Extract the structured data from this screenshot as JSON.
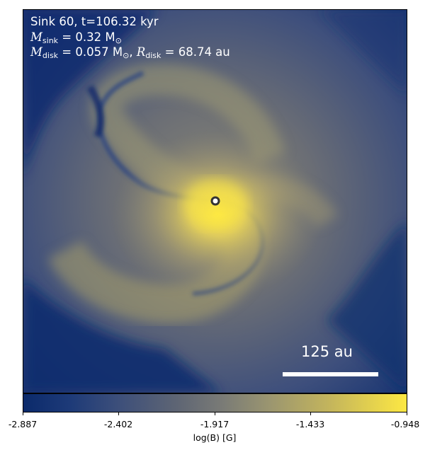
{
  "annotations": {
    "line1": "Sink 60, t=106.32 kyr",
    "msink_symbol": "M",
    "msink_sub": "sink",
    "msink_value": " = 0.32 M",
    "msink_unit_sub": "⊙",
    "mdisk_symbol": "M",
    "mdisk_sub": "disk",
    "mdisk_value": " = 0.057 M",
    "mdisk_unit_sub": "⊙",
    "rdisk_sep": ", ",
    "rdisk_symbol": "R",
    "rdisk_sub": "disk",
    "rdisk_value": " = 68.74 au"
  },
  "scalebar": {
    "label": "125 au"
  },
  "colorbar": {
    "label": "log(B) [G]",
    "ticks": [
      "-2.887",
      "-2.402",
      "-1.917",
      "-1.433",
      "-0.948"
    ],
    "colors": {
      "low": "#0b2a6b",
      "mid": "#7a7b76",
      "high": "#fde843"
    }
  },
  "sink": {
    "marker_color": "#ffffff",
    "outline_color": "#333333"
  }
}
